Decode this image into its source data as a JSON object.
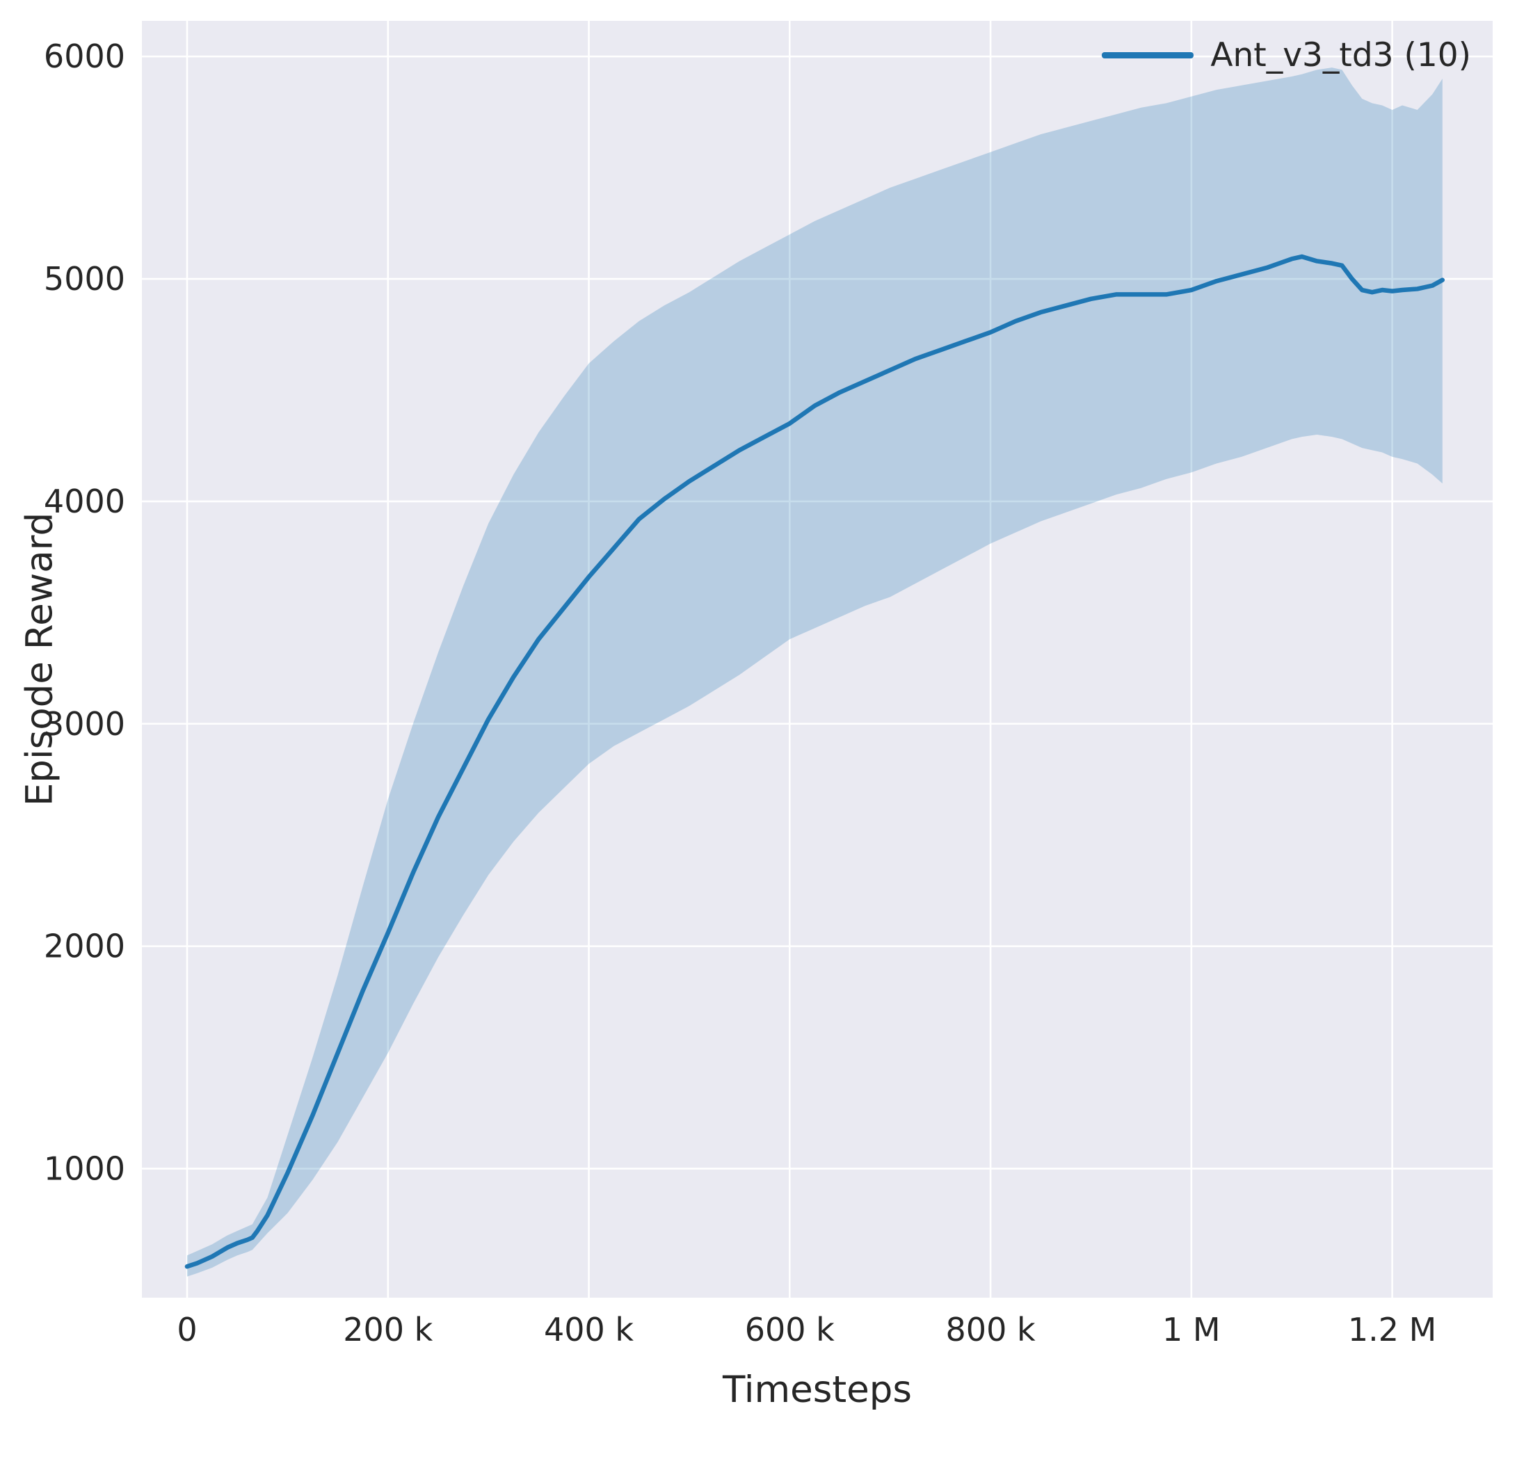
{
  "figure": {
    "background": "#ffffff",
    "plot_background": "#eaeaf2",
    "grid_color": "#ffffff",
    "text_color": "#262626",
    "accent_color": "#1f77b4"
  },
  "chart_data": {
    "type": "line",
    "title": "",
    "xlabel": "Timesteps",
    "ylabel": "Episode Reward",
    "xlim": [
      -45000,
      1300000
    ],
    "ylim": [
      420,
      6160
    ],
    "grid": true,
    "legend_position": "upper right",
    "x_ticks": [
      {
        "value": 0,
        "label": "0"
      },
      {
        "value": 200000,
        "label": "200 k"
      },
      {
        "value": 400000,
        "label": "400 k"
      },
      {
        "value": 600000,
        "label": "600 k"
      },
      {
        "value": 800000,
        "label": "800 k"
      },
      {
        "value": 1000000,
        "label": "1 M"
      },
      {
        "value": 1200000,
        "label": "1.2 M"
      }
    ],
    "y_ticks": [
      {
        "value": 1000,
        "label": "1000"
      },
      {
        "value": 2000,
        "label": "2000"
      },
      {
        "value": 3000,
        "label": "3000"
      },
      {
        "value": 4000,
        "label": "4000"
      },
      {
        "value": 5000,
        "label": "5000"
      },
      {
        "value": 6000,
        "label": "6000"
      }
    ],
    "series": [
      {
        "name": "Ant_v3_td3 (10)",
        "color": "#1f77b4",
        "band_opacity": 0.25,
        "x": [
          0,
          10000,
          25000,
          40000,
          50000,
          60000,
          65000,
          70000,
          80000,
          100000,
          125000,
          150000,
          175000,
          200000,
          225000,
          250000,
          275000,
          300000,
          325000,
          350000,
          375000,
          400000,
          425000,
          450000,
          475000,
          500000,
          525000,
          550000,
          575000,
          600000,
          625000,
          650000,
          675000,
          700000,
          725000,
          750000,
          775000,
          800000,
          825000,
          850000,
          875000,
          900000,
          925000,
          950000,
          975000,
          1000000,
          1025000,
          1050000,
          1075000,
          1100000,
          1110000,
          1125000,
          1140000,
          1150000,
          1160000,
          1170000,
          1180000,
          1190000,
          1200000,
          1210000,
          1225000,
          1240000,
          1250000
        ],
        "mean": [
          560,
          575,
          605,
          645,
          665,
          680,
          690,
          720,
          790,
          980,
          1240,
          1520,
          1800,
          2060,
          2330,
          2580,
          2800,
          3020,
          3210,
          3380,
          3520,
          3660,
          3790,
          3920,
          4010,
          4090,
          4160,
          4230,
          4290,
          4350,
          4430,
          4490,
          4540,
          4590,
          4640,
          4680,
          4720,
          4760,
          4810,
          4850,
          4880,
          4910,
          4930,
          4930,
          4930,
          4950,
          4990,
          5020,
          5050,
          5090,
          5100,
          5080,
          5070,
          5060,
          5000,
          4950,
          4940,
          4950,
          4945,
          4950,
          4955,
          4970,
          4995
        ],
        "upper": [
          610,
          630,
          660,
          700,
          720,
          740,
          750,
          790,
          870,
          1150,
          1500,
          1870,
          2270,
          2660,
          3000,
          3320,
          3620,
          3900,
          4120,
          4310,
          4470,
          4620,
          4720,
          4810,
          4880,
          4940,
          5010,
          5080,
          5140,
          5200,
          5260,
          5310,
          5360,
          5410,
          5450,
          5490,
          5530,
          5570,
          5610,
          5650,
          5680,
          5710,
          5740,
          5770,
          5790,
          5820,
          5850,
          5870,
          5890,
          5910,
          5920,
          5940,
          5950,
          5940,
          5870,
          5810,
          5790,
          5780,
          5760,
          5780,
          5760,
          5830,
          5900
        ],
        "lower": [
          515,
          530,
          555,
          590,
          610,
          625,
          635,
          660,
          710,
          800,
          950,
          1120,
          1320,
          1520,
          1740,
          1950,
          2140,
          2320,
          2470,
          2600,
          2710,
          2820,
          2900,
          2960,
          3020,
          3080,
          3150,
          3220,
          3300,
          3380,
          3430,
          3480,
          3530,
          3570,
          3630,
          3690,
          3750,
          3810,
          3860,
          3910,
          3950,
          3990,
          4030,
          4060,
          4100,
          4130,
          4170,
          4200,
          4240,
          4280,
          4290,
          4300,
          4290,
          4280,
          4260,
          4240,
          4230,
          4220,
          4200,
          4190,
          4170,
          4120,
          4080
        ]
      }
    ]
  }
}
